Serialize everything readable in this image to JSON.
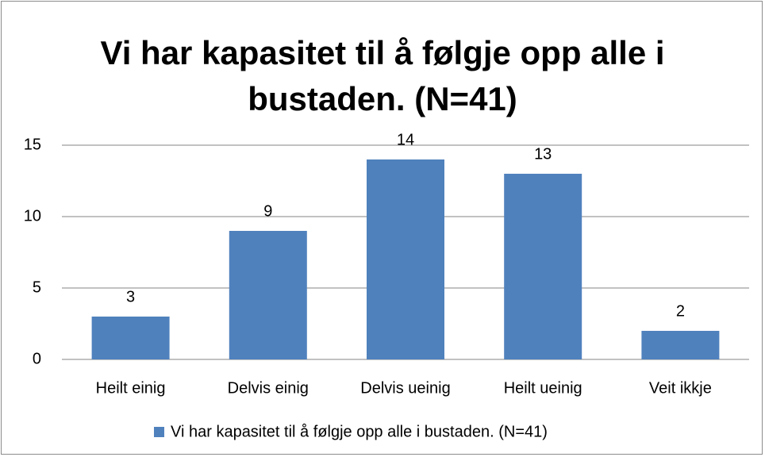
{
  "chart_data": {
    "type": "bar",
    "title": "Vi har kapasitet til å følgje opp alle i bustaden. (N=41)",
    "categories": [
      "Heilt einig",
      "Delvis einig",
      "Delvis ueinig",
      "Heilt ueinig",
      "Veit ikkje"
    ],
    "series": [
      {
        "name": "Vi har kapasitet til å følgje opp alle i bustaden. (N=41)",
        "color": "#4f81bd",
        "values": [
          3,
          9,
          14,
          13,
          2
        ]
      }
    ],
    "ylim": [
      0,
      15
    ],
    "yticks": [
      0,
      5,
      10,
      15
    ],
    "grid": true,
    "legend": "bottom"
  }
}
